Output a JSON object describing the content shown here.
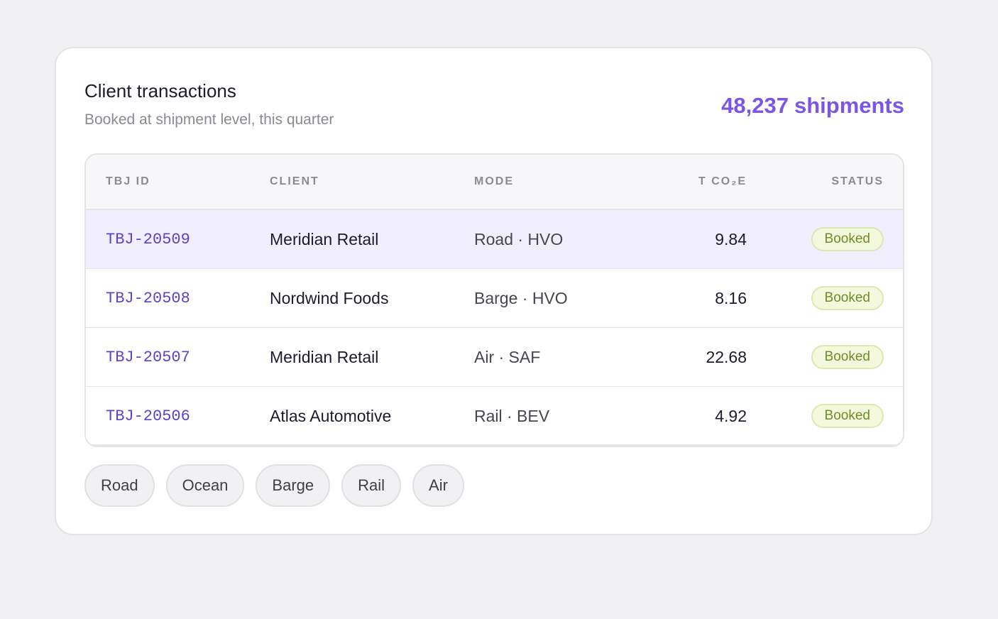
{
  "card": {
    "title": "Client transactions",
    "subtitle": "Booked at shipment level, this quarter",
    "count_value": "48,237",
    "count_label": "shipments"
  },
  "table": {
    "headers": {
      "id": "TBJ ID",
      "client": "CLIENT",
      "mode": "MODE",
      "tco2e": "T CO₂E",
      "status": "STATUS"
    },
    "rows": [
      {
        "id": "TBJ-20509",
        "client": "Meridian Retail",
        "mode": "Road · HVO",
        "tco2e": "9.84",
        "status": "Booked"
      },
      {
        "id": "TBJ-20508",
        "client": "Nordwind Foods",
        "mode": "Barge · HVO",
        "tco2e": "8.16",
        "status": "Booked"
      },
      {
        "id": "TBJ-20507",
        "client": "Meridian Retail",
        "mode": "Air · SAF",
        "tco2e": "22.68",
        "status": "Booked"
      },
      {
        "id": "TBJ-20506",
        "client": "Atlas Automotive",
        "mode": "Rail · BEV",
        "tco2e": "4.92",
        "status": "Booked"
      }
    ]
  },
  "filters": {
    "chips": [
      "Road",
      "Ocean",
      "Barge",
      "Rail",
      "Air"
    ]
  },
  "colors": {
    "accent": "#7b55e8",
    "id_text": "#5b44c9",
    "highlight_row": "#f1effd",
    "badge_bg": "#f4f8dc",
    "badge_text": "#6e8d26"
  }
}
